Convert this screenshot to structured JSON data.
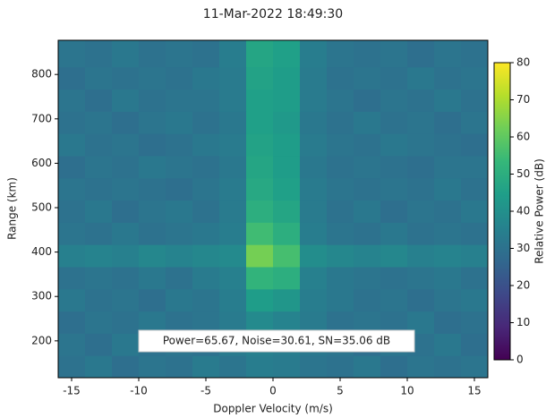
{
  "chart_data": {
    "type": "heatmap",
    "title": "11-Mar-2022 18:49:30",
    "x_label": "Doppler Velocity (m/s)",
    "y_label": "Range (km)",
    "colorbar_label": "Relative Power (dB)",
    "annotation": "Power=65.67, Noise=30.61, SN=35.06  dB",
    "colormap": "viridis",
    "clim": [
      0,
      80
    ],
    "cticks": [
      0,
      10,
      20,
      30,
      40,
      50,
      60,
      70,
      80
    ],
    "xlim": [
      -16,
      16
    ],
    "ylim": [
      117,
      877
    ],
    "xticks": [
      -15,
      -10,
      -5,
      0,
      5,
      10,
      15
    ],
    "yticks": [
      200,
      300,
      400,
      500,
      600,
      700,
      800
    ],
    "xbins": [
      -16,
      -14,
      -12,
      -10,
      -8,
      -6,
      -4,
      -2,
      0,
      2,
      4,
      6,
      8,
      10,
      12,
      14,
      16
    ],
    "ybins": [
      117,
      167,
      217,
      267,
      317,
      367,
      417,
      467,
      517,
      567,
      617,
      667,
      717,
      767,
      817,
      877
    ],
    "z": [
      [
        30,
        32,
        29,
        31,
        30,
        33,
        31,
        34,
        33,
        31,
        30,
        32,
        29,
        31,
        30,
        31
      ],
      [
        31,
        29,
        32,
        30,
        31,
        30,
        33,
        35,
        34,
        32,
        31,
        29,
        31,
        30,
        32,
        29
      ],
      [
        29,
        31,
        30,
        32,
        30,
        31,
        33,
        38,
        36,
        33,
        30,
        31,
        30,
        32,
        29,
        30
      ],
      [
        32,
        30,
        31,
        29,
        32,
        31,
        34,
        44,
        42,
        34,
        32,
        30,
        31,
        29,
        31,
        32
      ],
      [
        30,
        31,
        30,
        32,
        30,
        33,
        35,
        52,
        50,
        35,
        32,
        31,
        30,
        31,
        32,
        30
      ],
      [
        35,
        36,
        35,
        37,
        36,
        37,
        38,
        63,
        56,
        39,
        37,
        36,
        37,
        35,
        36,
        35
      ],
      [
        31,
        30,
        32,
        30,
        31,
        32,
        34,
        55,
        50,
        34,
        31,
        30,
        32,
        30,
        31,
        30
      ],
      [
        30,
        32,
        29,
        31,
        32,
        30,
        33,
        50,
        47,
        33,
        30,
        32,
        29,
        31,
        30,
        32
      ],
      [
        31,
        30,
        31,
        30,
        29,
        31,
        33,
        48,
        45,
        33,
        31,
        30,
        31,
        30,
        32,
        30
      ],
      [
        29,
        31,
        30,
        32,
        31,
        30,
        32,
        47,
        44,
        32,
        30,
        31,
        30,
        29,
        31,
        31
      ],
      [
        32,
        30,
        31,
        29,
        30,
        32,
        33,
        46,
        44,
        33,
        31,
        30,
        32,
        31,
        30,
        29
      ],
      [
        30,
        31,
        29,
        31,
        32,
        30,
        32,
        45,
        43,
        32,
        30,
        32,
        30,
        31,
        29,
        31
      ],
      [
        31,
        29,
        32,
        30,
        31,
        31,
        33,
        45,
        44,
        33,
        31,
        29,
        31,
        30,
        32,
        30
      ],
      [
        29,
        31,
        30,
        31,
        30,
        32,
        33,
        46,
        44,
        33,
        30,
        31,
        30,
        32,
        30,
        31
      ],
      [
        31,
        30,
        32,
        30,
        31,
        30,
        34,
        47,
        45,
        34,
        31,
        30,
        31,
        29,
        31,
        30
      ]
    ]
  }
}
